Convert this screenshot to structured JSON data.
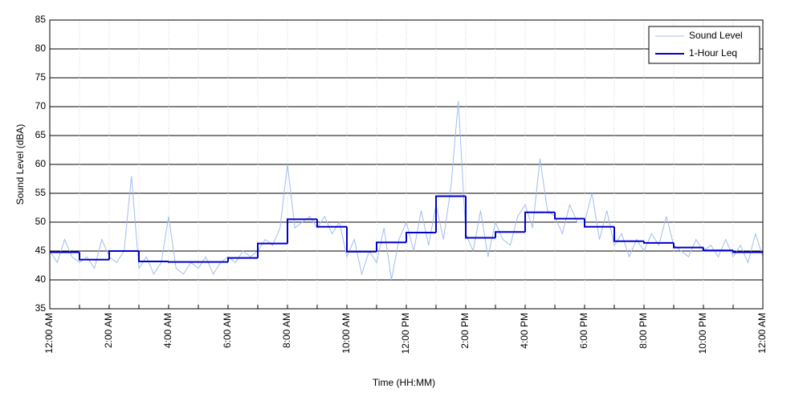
{
  "chart_data": {
    "type": "line",
    "xlabel": "Time (HH:MM)",
    "ylabel": "Sound Level (dBA)",
    "xlim": [
      0,
      24
    ],
    "ylim": [
      35,
      85
    ],
    "xticks": [
      {
        "value": 0,
        "label": "12:00 AM"
      },
      {
        "value": 1,
        "label": null
      },
      {
        "value": 2,
        "label": "2:00 AM"
      },
      {
        "value": 3,
        "label": null
      },
      {
        "value": 4,
        "label": "4:00 AM"
      },
      {
        "value": 5,
        "label": null
      },
      {
        "value": 6,
        "label": "6:00 AM"
      },
      {
        "value": 7,
        "label": null
      },
      {
        "value": 8,
        "label": "8:00 AM"
      },
      {
        "value": 9,
        "label": null
      },
      {
        "value": 10,
        "label": "10:00 AM"
      },
      {
        "value": 11,
        "label": null
      },
      {
        "value": 12,
        "label": "12:00 PM"
      },
      {
        "value": 13,
        "label": null
      },
      {
        "value": 14,
        "label": "2:00 PM"
      },
      {
        "value": 15,
        "label": null
      },
      {
        "value": 16,
        "label": "4:00 PM"
      },
      {
        "value": 17,
        "label": null
      },
      {
        "value": 18,
        "label": "6:00 PM"
      },
      {
        "value": 19,
        "label": null
      },
      {
        "value": 20,
        "label": "8:00 PM"
      },
      {
        "value": 21,
        "label": null
      },
      {
        "value": 22,
        "label": "10:00 PM"
      },
      {
        "value": 23,
        "label": null
      },
      {
        "value": 24,
        "label": "12:00 AM"
      }
    ],
    "yticks": [
      35,
      40,
      45,
      50,
      55,
      60,
      65,
      70,
      75,
      80,
      85
    ],
    "grid": true,
    "legend": "upper right",
    "series": [
      {
        "name": "Sound Level",
        "color": "#a3bcf0",
        "style": "line",
        "x": [
          0,
          0.25,
          0.5,
          0.75,
          1,
          1.25,
          1.5,
          1.75,
          2,
          2.25,
          2.5,
          2.75,
          3,
          3.25,
          3.5,
          3.75,
          4,
          4.25,
          4.5,
          4.75,
          5,
          5.25,
          5.5,
          5.75,
          6,
          6.25,
          6.5,
          6.75,
          7,
          7.25,
          7.5,
          7.75,
          8,
          8.25,
          8.5,
          8.75,
          9,
          9.25,
          9.5,
          9.75,
          10,
          10.25,
          10.5,
          10.75,
          11,
          11.25,
          11.5,
          11.75,
          12,
          12.25,
          12.5,
          12.75,
          13,
          13.25,
          13.5,
          13.75,
          14,
          14.25,
          14.5,
          14.75,
          15,
          15.25,
          15.5,
          15.75,
          16,
          16.25,
          16.5,
          16.75,
          17,
          17.25,
          17.5,
          17.75,
          18,
          18.25,
          18.5,
          18.75,
          19,
          19.25,
          19.5,
          19.75,
          20,
          20.25,
          20.5,
          20.75,
          21,
          21.25,
          21.5,
          21.75,
          22,
          22.25,
          22.5,
          22.75,
          23,
          23.25,
          23.5,
          23.75,
          24
        ],
        "values": [
          45,
          43,
          47,
          44,
          43,
          44,
          42,
          47,
          44,
          43,
          45,
          58,
          42,
          44,
          41,
          43,
          51,
          42,
          41,
          43,
          42,
          44,
          41,
          43,
          44,
          43,
          45,
          44,
          45,
          47,
          46,
          49,
          60,
          49,
          50,
          51,
          49,
          51,
          48,
          50,
          44,
          47,
          41,
          45,
          43,
          49,
          40,
          47,
          50,
          45,
          52,
          46,
          53,
          47,
          56,
          71,
          48,
          45,
          52,
          44,
          50,
          47,
          46,
          51,
          53,
          49,
          61,
          52,
          51,
          48,
          53,
          50,
          50,
          55,
          47,
          52,
          46,
          48,
          44,
          47,
          45,
          48,
          46,
          51,
          46,
          45,
          44,
          47,
          45,
          46,
          44,
          47,
          44,
          46,
          43,
          48,
          44
        ]
      },
      {
        "name": "1-Hour Leq",
        "color": "#0000cc",
        "style": "step",
        "x": [
          0,
          1,
          2,
          3,
          4,
          5,
          6,
          7,
          8,
          9,
          10,
          11,
          12,
          13,
          14,
          15,
          16,
          17,
          18,
          19,
          20,
          21,
          22,
          23
        ],
        "values": [
          44.8,
          43.5,
          45,
          43.2,
          43.1,
          43.1,
          43.8,
          46.3,
          50.5,
          49.2,
          44.9,
          46.5,
          48.2,
          54.5,
          47.3,
          48.3,
          51.7,
          50.6,
          49.2,
          46.7,
          46.4,
          45.6,
          45.1,
          44.8
        ]
      }
    ]
  }
}
